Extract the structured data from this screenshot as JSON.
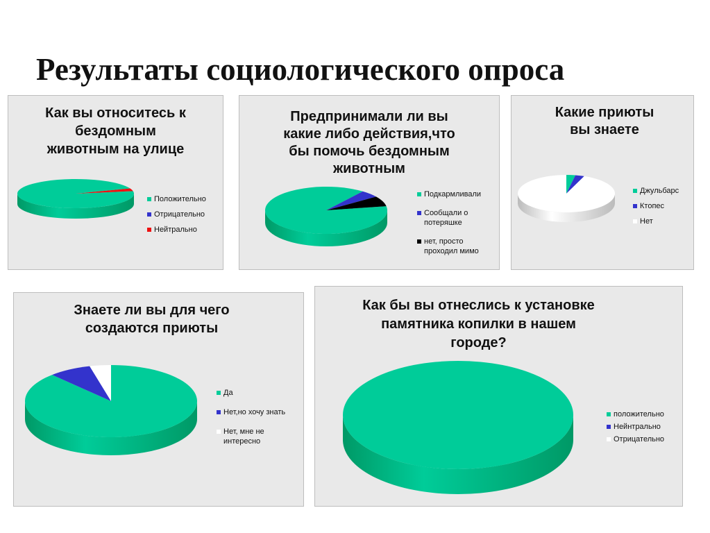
{
  "page_title": "Результаты социологического опроса",
  "colors": {
    "green": "#00cc99",
    "blue": "#3333cc",
    "red": "#ee1111",
    "black": "#000000",
    "white": "#ffffff"
  },
  "chart_data": [
    {
      "type": "pie",
      "title": [
        "Как вы относитесь к",
        "бездомным",
        "животным на улице"
      ],
      "categories": [
        "Положительно",
        "Отрицательно",
        "Нейтрально"
      ],
      "values": [
        97,
        0,
        3
      ]
    },
    {
      "type": "pie",
      "title": [
        "Предпринимали ли вы",
        "какие либо действия,что",
        "бы помочь бездомным",
        "животным"
      ],
      "categories": [
        "Подкармливали",
        "Сообщали о потеряшке",
        "нет, просто проходил мимо"
      ],
      "legend_lines": [
        [
          "Подкармливали"
        ],
        [
          "Сообщали о",
          "потеряшке"
        ],
        [
          "нет, просто",
          "проходил мимо"
        ]
      ],
      "values": [
        88,
        5,
        7
      ]
    },
    {
      "type": "pie",
      "title": [
        "Какие приюты",
        "вы знаете"
      ],
      "categories": [
        "Джульбарс",
        "Ктопес",
        "Нет"
      ],
      "values": [
        3,
        3,
        94
      ]
    },
    {
      "type": "pie",
      "title": [
        "Знаете ли вы для чего",
        "создаются приюты"
      ],
      "categories": [
        "Да",
        "Нет,но хочу знать",
        "Нет, мне не интересно"
      ],
      "legend_lines": [
        [
          "Да"
        ],
        [
          "Нет,но хочу знать"
        ],
        [
          "Нет, мне не",
          "интересно"
        ]
      ],
      "values": [
        88,
        8,
        4
      ]
    },
    {
      "type": "pie",
      "title": [
        "Как бы вы отнеслись к установке",
        "памятника копилки в нашем",
        "городе?"
      ],
      "categories": [
        "положительно",
        "Нейнтрально",
        "Отрицательно"
      ],
      "values": [
        100,
        0,
        0
      ]
    }
  ]
}
